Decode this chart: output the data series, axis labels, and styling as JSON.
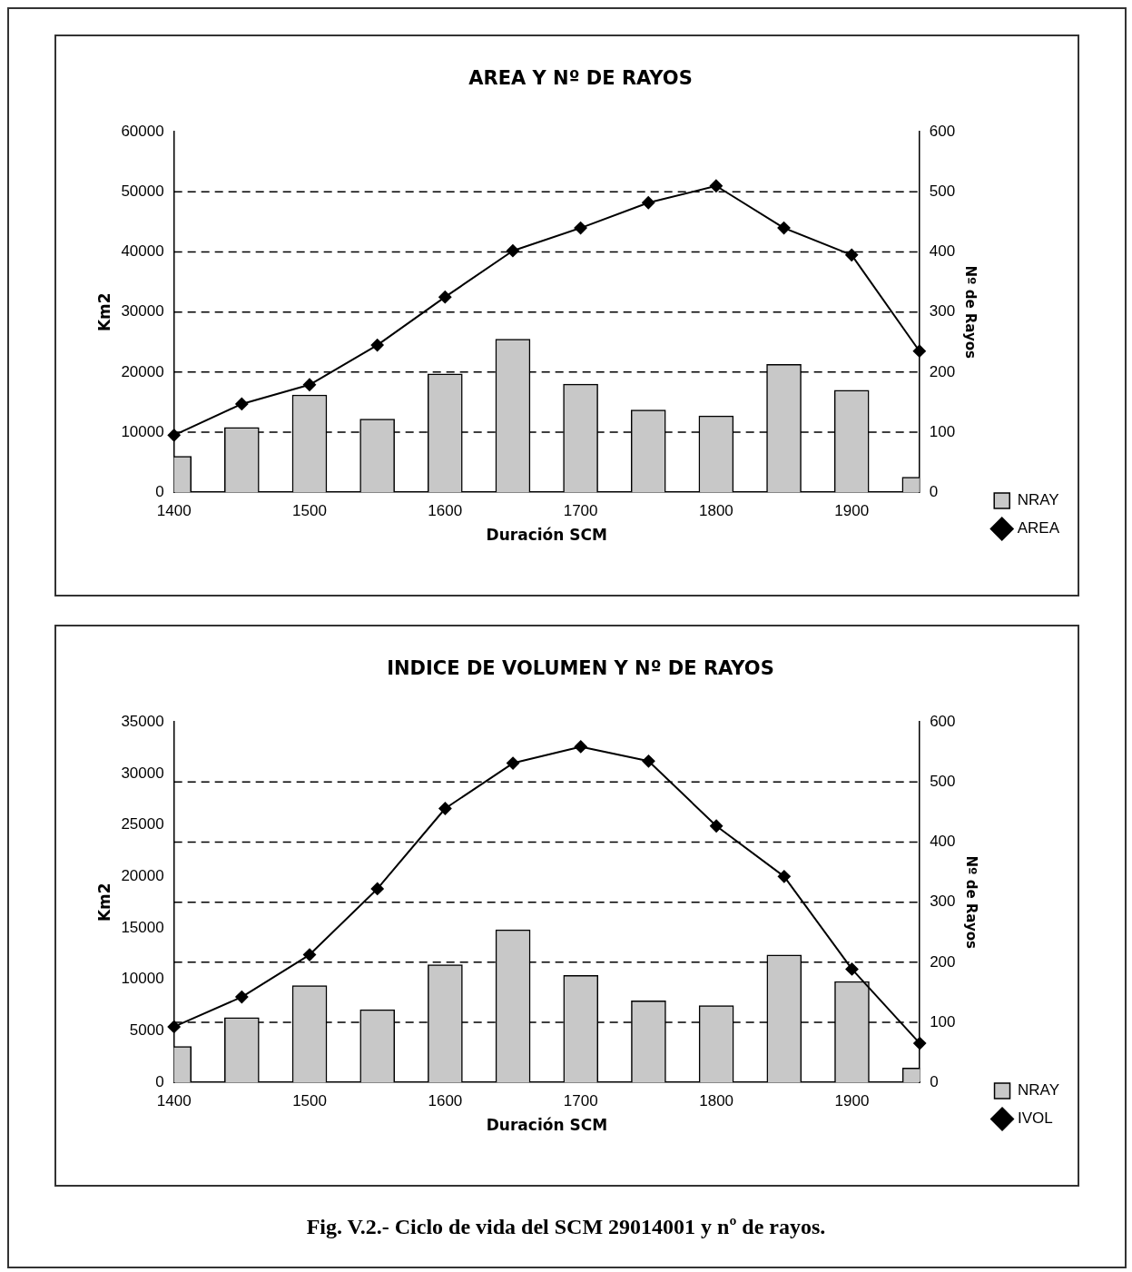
{
  "chart_data": [
    {
      "type": "bar",
      "title": "AREA Y Nº DE RAYOS",
      "xlabel": "Duración SCM",
      "ylabel": "Km2",
      "y2label": "Nº de Rayos",
      "x": [
        1400,
        1450,
        1500,
        1550,
        1600,
        1650,
        1700,
        1750,
        1800,
        1850,
        1900,
        1950
      ],
      "series": [
        {
          "name": "NRAY",
          "axis": "y2",
          "color": "#c8c8c8",
          "values": [
            60,
            108,
            162,
            122,
            197,
            255,
            180,
            137,
            127,
            213,
            170,
            25
          ]
        },
        {
          "name": "AREA",
          "type": "line",
          "color": "#000000",
          "marker": "diamond",
          "values": [
            9500,
            14700,
            17900,
            24500,
            32500,
            40200,
            44000,
            48200,
            51000,
            44000,
            39500,
            23500
          ]
        }
      ],
      "xlim": [
        1400,
        1950
      ],
      "xticks": [
        1400,
        1500,
        1600,
        1700,
        1800,
        1900
      ],
      "ylim": [
        0,
        60000
      ],
      "yticks": [
        0,
        10000,
        20000,
        30000,
        40000,
        50000,
        60000
      ],
      "y2lim": [
        0,
        600
      ],
      "y2ticks": [
        0,
        100,
        200,
        300,
        400,
        500,
        600
      ],
      "grid": "y",
      "legend": "bottom right"
    },
    {
      "type": "bar",
      "title": "INDICE DE VOLUMEN Y Nº DE RAYOS",
      "xlabel": "Duración SCM",
      "ylabel": "Km2",
      "y2label": "Nº de Rayos",
      "x": [
        1400,
        1450,
        1500,
        1550,
        1600,
        1650,
        1700,
        1750,
        1800,
        1850,
        1900,
        1950
      ],
      "series": [
        {
          "name": "NRAY",
          "axis": "y2",
          "color": "#c8c8c8",
          "values": [
            60,
            108,
            161,
            121,
            196,
            254,
            178,
            136,
            128,
            212,
            168,
            24
          ]
        },
        {
          "name": "IVOL",
          "type": "line",
          "color": "#000000",
          "marker": "diamond",
          "values": [
            5400,
            8300,
            12400,
            18800,
            26600,
            31000,
            32600,
            31200,
            24900,
            20000,
            11000,
            3800
          ]
        }
      ],
      "xlim": [
        1400,
        1950
      ],
      "xticks": [
        1400,
        1500,
        1600,
        1700,
        1800,
        1900
      ],
      "ylim": [
        0,
        35000
      ],
      "yticks": [
        0,
        5000,
        10000,
        15000,
        20000,
        25000,
        30000,
        35000
      ],
      "y2lim": [
        0,
        600
      ],
      "y2ticks": [
        0,
        100,
        200,
        300,
        400,
        500,
        600
      ],
      "grid": "y",
      "legend": "bottom right",
      "annotations": [
        "Fig. V.2.- Ciclo de vida del SCM 29014001 y nº de rayos."
      ]
    }
  ]
}
